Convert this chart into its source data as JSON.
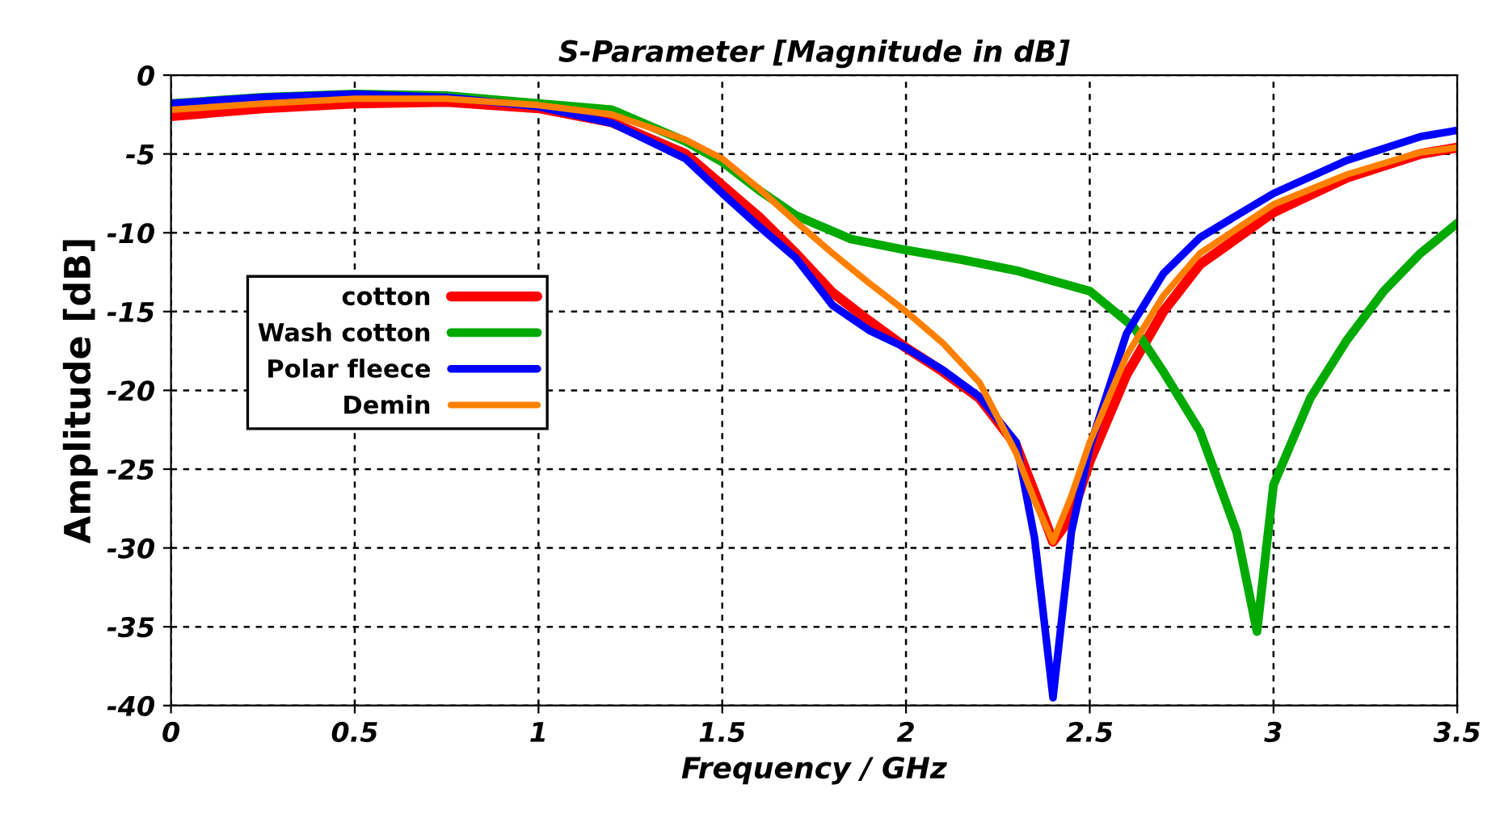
{
  "chart_data": {
    "type": "line",
    "title": "S-Parameter [Magnitude in dB]",
    "xlabel": "Frequency / GHz",
    "ylabel": "Amplitude [dB]",
    "xlim": [
      0,
      3.5
    ],
    "ylim": [
      -40,
      0
    ],
    "xticks": [
      0,
      0.5,
      1,
      1.5,
      2,
      2.5,
      3,
      3.5
    ],
    "yticks": [
      0,
      -5,
      -10,
      -15,
      -20,
      -25,
      -30,
      -35,
      -40
    ],
    "grid": true,
    "legend": "left",
    "line_style": "solid",
    "series": [
      {
        "name": "cotton",
        "color": "#ff0000",
        "x": [
          0,
          0.25,
          0.5,
          0.75,
          1.0,
          1.2,
          1.4,
          1.5,
          1.6,
          1.7,
          1.8,
          1.9,
          2.0,
          2.1,
          2.2,
          2.3,
          2.35,
          2.4,
          2.45,
          2.5,
          2.6,
          2.7,
          2.8,
          3.0,
          3.2,
          3.4,
          3.5
        ],
        "values": [
          -2.6,
          -2.1,
          -1.8,
          -1.7,
          -2.1,
          -3.0,
          -5.0,
          -7.0,
          -9.0,
          -11.3,
          -13.8,
          -15.6,
          -17.3,
          -18.8,
          -20.5,
          -23.5,
          -26.5,
          -29.6,
          -28,
          -24.5,
          -19,
          -15,
          -12,
          -8.7,
          -6.5,
          -5.0,
          -4.6
        ]
      },
      {
        "name": "Wash cotton",
        "color": "#00aa00",
        "x": [
          0,
          0.25,
          0.5,
          0.75,
          1.0,
          1.2,
          1.4,
          1.5,
          1.6,
          1.7,
          1.85,
          2.0,
          2.15,
          2.3,
          2.5,
          2.62,
          2.7,
          2.8,
          2.9,
          2.955,
          3.0,
          3.1,
          3.2,
          3.3,
          3.4,
          3.5
        ],
        "values": [
          -1.8,
          -1.4,
          -1.2,
          -1.3,
          -1.8,
          -2.2,
          -4.2,
          -5.5,
          -7.3,
          -8.9,
          -10.4,
          -11.1,
          -11.7,
          -12.4,
          -13.7,
          -16,
          -18.8,
          -22.6,
          -29,
          -35.3,
          -26,
          -20.5,
          -16.8,
          -13.7,
          -11.3,
          -9.4
        ]
      },
      {
        "name": "Polar fleece",
        "color": "#0000ff",
        "x": [
          0,
          0.25,
          0.5,
          0.75,
          1.0,
          1.2,
          1.4,
          1.5,
          1.6,
          1.7,
          1.8,
          1.9,
          2.0,
          2.1,
          2.2,
          2.3,
          2.35,
          2.4,
          2.45,
          2.5,
          2.6,
          2.7,
          2.8,
          3.0,
          3.2,
          3.4,
          3.5
        ],
        "values": [
          -1.8,
          -1.4,
          -1.2,
          -1.4,
          -2.0,
          -3.05,
          -5.3,
          -7.5,
          -9.6,
          -11.6,
          -14.6,
          -16.2,
          -17.3,
          -18.7,
          -20.4,
          -23.3,
          -29.4,
          -39.5,
          -29,
          -23.6,
          -16.4,
          -12.6,
          -10.3,
          -7.5,
          -5.4,
          -3.9,
          -3.5
        ]
      },
      {
        "name": "Demin",
        "color": "#ff8000",
        "x": [
          0,
          0.25,
          0.5,
          0.75,
          1.0,
          1.2,
          1.4,
          1.5,
          1.6,
          1.7,
          1.8,
          1.9,
          2.0,
          2.1,
          2.2,
          2.3,
          2.35,
          2.4,
          2.45,
          2.5,
          2.6,
          2.7,
          2.8,
          3.0,
          3.2,
          3.4,
          3.5
        ],
        "values": [
          -2.2,
          -1.8,
          -1.5,
          -1.5,
          -1.9,
          -2.5,
          -4.1,
          -5.3,
          -7.2,
          -9.3,
          -11.3,
          -13.2,
          -15,
          -17,
          -19.5,
          -24,
          -27,
          -29.6,
          -26.7,
          -23.3,
          -17.8,
          -14,
          -11.3,
          -8.2,
          -6.3,
          -4.9,
          -4.6
        ]
      }
    ]
  }
}
